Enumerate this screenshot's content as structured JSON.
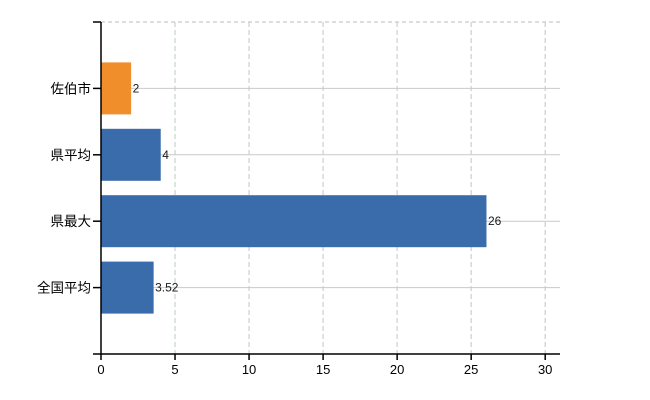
{
  "chart_data": {
    "type": "bar",
    "orientation": "horizontal",
    "title": "",
    "xlabel": "",
    "ylabel": "",
    "categories": [
      "佐伯市",
      "県平均",
      "県最大",
      "全国平均"
    ],
    "values": [
      2,
      4,
      26,
      3.52
    ],
    "value_labels": [
      "2",
      "4",
      "26",
      "3.52"
    ],
    "bar_colors": [
      "#ef8e2b",
      "#3a6cab",
      "#3a6cab",
      "#3a6cab"
    ],
    "xlim": [
      0,
      31
    ],
    "xticks": [
      0,
      5,
      10,
      15,
      20,
      25,
      30
    ],
    "xtick_labels": [
      "0",
      "5",
      "10",
      "15",
      "20",
      "25",
      "30"
    ],
    "grid": true,
    "legend": false
  },
  "colors": {
    "background": "#ffffff",
    "axis": "#000000",
    "grid_vertical": "#c9d2c9",
    "grid_horizontal": "#c9c9c9",
    "plot_border_top": "#c9c9c9",
    "category_text": "#000000",
    "tick_text": "#000000",
    "value_text": "#1a1a1a"
  }
}
